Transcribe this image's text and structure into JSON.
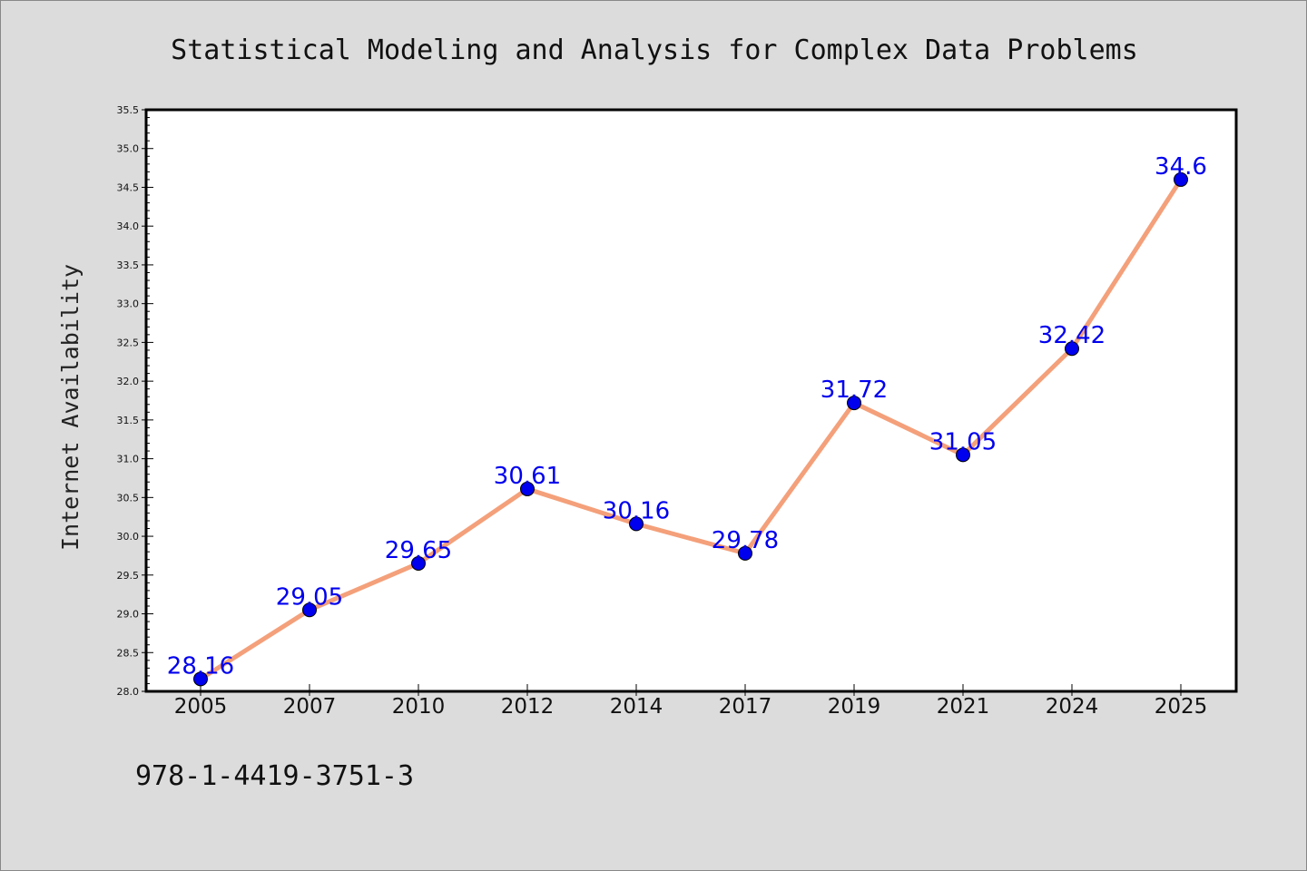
{
  "chart_data": {
    "type": "line",
    "title": "Statistical Modeling and Analysis for Complex Data Problems",
    "xlabel": "",
    "ylabel": "Internet Availability",
    "categories": [
      "2005",
      "2007",
      "2010",
      "2012",
      "2014",
      "2017",
      "2019",
      "2021",
      "2024",
      "2025"
    ],
    "series": [
      {
        "values": [
          28.16,
          29.05,
          29.65,
          30.61,
          30.16,
          29.78,
          31.72,
          31.05,
          32.42,
          34.6
        ],
        "labels": [
          "28.16",
          "29.05",
          "29.65",
          "30.61",
          "30.16",
          "29.78",
          "31.72",
          "31.05",
          "32.42",
          "34.6"
        ],
        "line_color": "#f4a07a",
        "marker_color": "#0000ee",
        "label_color": "#0000ee"
      }
    ],
    "ylim": [
      28.0,
      35.5
    ],
    "yticks": [
      "28.0",
      "28.5",
      "29.0",
      "29.5",
      "30.0",
      "30.5",
      "31.0",
      "31.5",
      "32.0",
      "32.5",
      "33.0",
      "33.5",
      "34.0",
      "34.5",
      "35.0",
      "35.5"
    ],
    "grid": false
  },
  "footnote": "978-1-4419-3751-3",
  "colors": {
    "background": "#dcdcdc",
    "plot_area": "#ffffff"
  }
}
